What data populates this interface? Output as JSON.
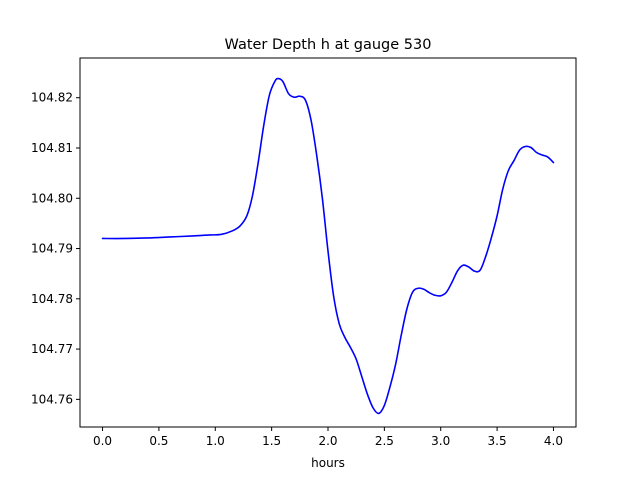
{
  "chart_data": {
    "type": "line",
    "title": "Water Depth h at gauge 530",
    "xlabel": "hours",
    "ylabel": "",
    "xlim": [
      -0.2,
      4.2
    ],
    "ylim": [
      104.7545,
      104.8279
    ],
    "grid": false,
    "xticks": [
      0.0,
      0.5,
      1.0,
      1.5,
      2.0,
      2.5,
      3.0,
      3.5,
      4.0
    ],
    "xtick_labels": [
      "0.0",
      "0.5",
      "1.0",
      "1.5",
      "2.0",
      "2.5",
      "3.0",
      "3.5",
      "4.0"
    ],
    "yticks": [
      104.76,
      104.77,
      104.78,
      104.79,
      104.8,
      104.81,
      104.82
    ],
    "ytick_labels": [
      "104.76",
      "104.77",
      "104.78",
      "104.79",
      "104.80",
      "104.81",
      "104.82"
    ],
    "series": [
      {
        "color": "#0000ff",
        "x": [
          0.0,
          0.2,
          0.4,
          0.6,
          0.8,
          0.95,
          1.05,
          1.15,
          1.22,
          1.28,
          1.33,
          1.38,
          1.43,
          1.48,
          1.53,
          1.56,
          1.6,
          1.65,
          1.7,
          1.75,
          1.8,
          1.85,
          1.9,
          1.95,
          2.0,
          2.05,
          2.1,
          2.15,
          2.2,
          2.25,
          2.3,
          2.35,
          2.4,
          2.45,
          2.5,
          2.55,
          2.6,
          2.65,
          2.7,
          2.75,
          2.8,
          2.85,
          2.9,
          2.95,
          3.0,
          3.05,
          3.1,
          3.15,
          3.2,
          3.25,
          3.3,
          3.35,
          3.4,
          3.45,
          3.5,
          3.55,
          3.6,
          3.65,
          3.7,
          3.75,
          3.8,
          3.85,
          3.9,
          3.95,
          4.0
        ],
        "y": [
          104.792,
          104.792,
          104.7921,
          104.7923,
          104.7925,
          104.7927,
          104.7928,
          104.7935,
          104.7945,
          104.7965,
          104.8005,
          104.807,
          104.8145,
          104.8205,
          104.8233,
          104.8238,
          104.8232,
          104.8208,
          104.8201,
          104.8203,
          104.8195,
          104.8155,
          104.8085,
          104.8,
          104.7895,
          104.7805,
          104.775,
          104.7723,
          104.7703,
          104.768,
          104.7645,
          104.761,
          104.7583,
          104.7572,
          104.7588,
          104.7625,
          104.767,
          104.7728,
          104.778,
          104.7813,
          104.7821,
          104.7819,
          104.7812,
          104.7807,
          104.7806,
          104.7813,
          104.7833,
          104.7856,
          104.7867,
          104.7863,
          104.7855,
          104.7857,
          104.7885,
          104.7922,
          104.7965,
          104.8018,
          104.8055,
          104.8075,
          104.8096,
          104.8103,
          104.8101,
          104.8091,
          104.8086,
          104.8082,
          104.8071
        ]
      }
    ]
  }
}
